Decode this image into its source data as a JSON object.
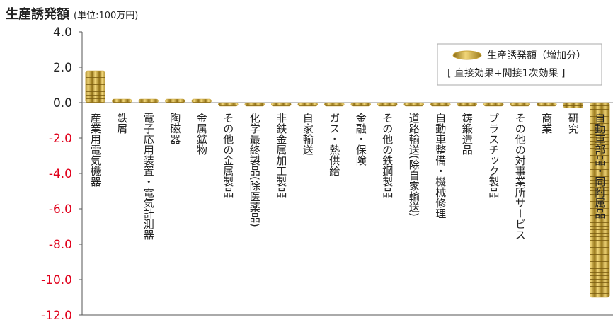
{
  "chart_data": {
    "type": "bar",
    "title": "生産誘発額",
    "subtitle": "(単位:100万円)",
    "categories": [
      "産業用電気機器",
      "鉄屑",
      "電子応用装置・電気計測器",
      "陶磁器",
      "金属鉱物",
      "その他の金属製品",
      "化学最終製品(除医薬品)",
      "非鉄金属加工製品",
      "自家輸送",
      "ガス・熱供給",
      "金融・保険",
      "その他の鉄鋼製品",
      "道路輸送(除自家輸送)",
      "自動車整備・機械修理",
      "鋳鍛造品",
      "プラスチック製品",
      "その他の対事業所サービス",
      "商業",
      "研究",
      "自動車部品・同附属品"
    ],
    "series": [
      {
        "name": "生産誘発額（増加分）",
        "color": "#c9a43a",
        "values": [
          1.8,
          0.2,
          0.2,
          0.2,
          0.0,
          -0.05,
          -0.05,
          -0.05,
          -0.05,
          -0.05,
          -0.05,
          -0.05,
          -0.05,
          -0.05,
          -0.05,
          -0.05,
          -0.05,
          -0.1,
          -0.3,
          -11.0
        ]
      }
    ],
    "legend_note": "[ 直接効果+間接1次効果 ]",
    "ylim": [
      -12,
      4
    ],
    "yticks": [
      {
        "value": 4,
        "label": "4.0"
      },
      {
        "value": 2,
        "label": "2.0"
      },
      {
        "value": 0,
        "label": "0.0"
      },
      {
        "value": -2,
        "label": "-2.0"
      },
      {
        "value": -4,
        "label": "-4.0"
      },
      {
        "value": -6,
        "label": "-6.0"
      },
      {
        "value": -8,
        "label": "-8.0"
      },
      {
        "value": -10,
        "label": "-10.0"
      },
      {
        "value": -12,
        "label": "-12.0"
      }
    ],
    "negative_tick_color": "#e0001b",
    "legend": "top-right"
  }
}
